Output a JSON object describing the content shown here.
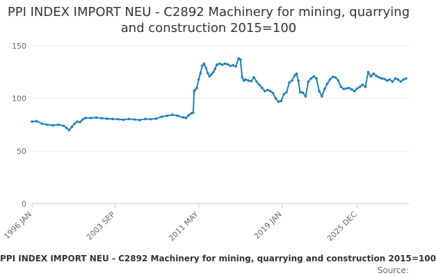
{
  "chart_data": {
    "type": "line",
    "title": "PPI INDEX IMPORT NEU - C2892 Machinery for mining, quarrying and construction 2015=100",
    "series": [
      {
        "name": "PPI INDEX IMPORT NEU - C2892 Machinery for mining, quarrying and construction 2015=100",
        "color": "#1f7ec1",
        "points": [
          [
            "1996-01",
            78
          ],
          [
            "1996-06",
            78.5
          ],
          [
            "1996-12",
            76
          ],
          [
            "1997-06",
            75
          ],
          [
            "1997-12",
            74.5
          ],
          [
            "1998-06",
            75
          ],
          [
            "1998-12",
            74
          ],
          [
            "1999-03",
            72
          ],
          [
            "1999-06",
            70
          ],
          [
            "1999-09",
            73
          ],
          [
            "1999-12",
            76
          ],
          [
            "2000-03",
            78
          ],
          [
            "2000-06",
            77.5
          ],
          [
            "2000-09",
            80
          ],
          [
            "2000-12",
            81.5
          ],
          [
            "2001-06",
            81.5
          ],
          [
            "2001-12",
            81.8
          ],
          [
            "2002-06",
            81.2
          ],
          [
            "2002-12",
            80.8
          ],
          [
            "2003-06",
            80.5
          ],
          [
            "2003-12",
            80.2
          ],
          [
            "2004-06",
            79.8
          ],
          [
            "2004-12",
            80.5
          ],
          [
            "2005-06",
            80
          ],
          [
            "2005-12",
            79.5
          ],
          [
            "2006-06",
            80.5
          ],
          [
            "2006-12",
            80.3
          ],
          [
            "2007-06",
            80.8
          ],
          [
            "2007-12",
            82.5
          ],
          [
            "2008-06",
            83.5
          ],
          [
            "2008-12",
            84.5
          ],
          [
            "2009-06",
            83.5
          ],
          [
            "2009-12",
            82
          ],
          [
            "2010-03",
            81.5
          ],
          [
            "2010-06",
            84
          ],
          [
            "2010-09",
            86
          ],
          [
            "2010-11",
            86.5
          ],
          [
            "2010-12",
            107
          ],
          [
            "2011-01",
            108
          ],
          [
            "2011-03",
            110
          ],
          [
            "2011-05",
            118
          ],
          [
            "2011-07",
            124
          ],
          [
            "2011-09",
            131
          ],
          [
            "2011-11",
            133
          ],
          [
            "2012-01",
            129
          ],
          [
            "2012-03",
            124
          ],
          [
            "2012-05",
            121
          ],
          [
            "2012-07",
            123
          ],
          [
            "2012-09",
            125
          ],
          [
            "2012-11",
            128
          ],
          [
            "2013-01",
            132
          ],
          [
            "2013-04",
            133
          ],
          [
            "2013-07",
            132
          ],
          [
            "2013-10",
            133
          ],
          [
            "2014-01",
            132.5
          ],
          [
            "2014-04",
            131
          ],
          [
            "2014-07",
            131.5
          ],
          [
            "2014-10",
            130.5
          ],
          [
            "2015-01",
            138
          ],
          [
            "2015-03",
            137
          ],
          [
            "2015-05",
            120
          ],
          [
            "2015-07",
            117
          ],
          [
            "2015-09",
            118
          ],
          [
            "2015-12",
            117
          ],
          [
            "2016-03",
            116.5
          ],
          [
            "2016-06",
            120
          ],
          [
            "2016-09",
            116
          ],
          [
            "2016-12",
            113
          ],
          [
            "2017-03",
            110
          ],
          [
            "2017-06",
            107
          ],
          [
            "2017-09",
            108
          ],
          [
            "2017-12",
            107
          ],
          [
            "2018-03",
            105
          ],
          [
            "2018-06",
            100
          ],
          [
            "2018-09",
            97
          ],
          [
            "2018-12",
            97.5
          ],
          [
            "2019-03",
            104
          ],
          [
            "2019-06",
            106
          ],
          [
            "2019-09",
            115
          ],
          [
            "2019-12",
            117
          ],
          [
            "2020-03",
            122
          ],
          [
            "2020-05",
            123.5
          ],
          [
            "2020-07",
            117
          ],
          [
            "2020-09",
            106
          ],
          [
            "2020-12",
            105.5
          ],
          [
            "2021-03",
            102
          ],
          [
            "2021-06",
            116
          ],
          [
            "2021-09",
            119
          ],
          [
            "2021-12",
            121
          ],
          [
            "2022-03",
            119
          ],
          [
            "2022-06",
            107
          ],
          [
            "2022-09",
            102
          ],
          [
            "2022-12",
            109
          ],
          [
            "2023-03",
            114
          ],
          [
            "2023-06",
            118
          ],
          [
            "2023-09",
            120.5
          ],
          [
            "2023-12",
            120
          ],
          [
            "2024-03",
            117
          ],
          [
            "2024-06",
            111
          ],
          [
            "2024-09",
            109
          ],
          [
            "2024-12",
            109.5
          ],
          [
            "2025-03",
            110
          ],
          [
            "2025-06",
            108.5
          ],
          [
            "2025-09",
            107
          ],
          [
            "2025-12",
            109.5
          ],
          [
            "2026-03",
            111
          ],
          [
            "2026-06",
            113
          ],
          [
            "2026-09",
            111
          ],
          [
            "2026-12",
            125
          ],
          [
            "2027-03",
            121
          ],
          [
            "2027-06",
            123.5
          ],
          [
            "2027-09",
            121.5
          ],
          [
            "2027-12",
            120
          ],
          [
            "2028-03",
            119
          ],
          [
            "2028-06",
            118.5
          ],
          [
            "2028-09",
            117
          ],
          [
            "2028-12",
            118
          ],
          [
            "2029-03",
            116
          ],
          [
            "2029-06",
            119
          ],
          [
            "2029-09",
            118
          ],
          [
            "2029-12",
            116
          ],
          [
            "2030-03",
            118
          ],
          [
            "2030-06",
            119
          ]
        ]
      }
    ],
    "ylim": [
      0,
      150
    ],
    "yticks": [
      0,
      50,
      100,
      150
    ],
    "xlim": [
      "1996-01",
      "2030-09"
    ],
    "xticks": [
      "1996 JAN",
      "2003 SEP",
      "2011 MAY",
      "2019 JAN",
      "2025 DEC"
    ],
    "xlabel": "",
    "ylabel": "",
    "grid": "horizontal",
    "legend": "bottom",
    "source_label": "Source:"
  }
}
